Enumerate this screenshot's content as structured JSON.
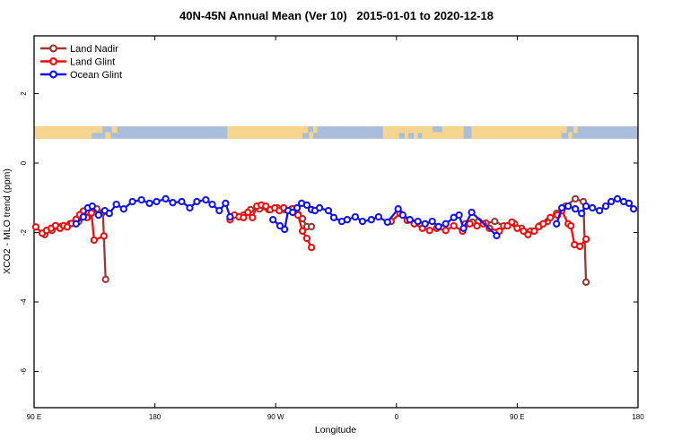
{
  "chart_data": {
    "type": "line",
    "title": "40N-45N Annual Mean (Ver 10)   2015-01-01 to 2020-12-18",
    "xlabel": "Longitude",
    "ylabel": "XCO2 - MLO trend (ppm)",
    "x_axis": {
      "range_deg_east_of_90E": [
        0,
        450
      ],
      "ticks": [
        {
          "deg": 0,
          "label": "90 E"
        },
        {
          "deg": 90,
          "label": "180"
        },
        {
          "deg": 180,
          "label": "90 W"
        },
        {
          "deg": 270,
          "label": "0"
        },
        {
          "deg": 360,
          "label": "90 E"
        },
        {
          "deg": 450,
          "label": "180"
        }
      ]
    },
    "y_axis": {
      "range_ppm": [
        -7.05,
        3.66
      ],
      "ticks": [
        {
          "v": 2,
          "label": "2"
        },
        {
          "v": 0,
          "label": "0"
        },
        {
          "v": -2,
          "label": "-2"
        },
        {
          "v": -4,
          "label": "-4"
        },
        {
          "v": -6,
          "label": "-6"
        }
      ],
      "grid": false
    },
    "legend": {
      "position": "top-left-inside",
      "entries": [
        {
          "name": "Land Nadir",
          "color": "#9E3832"
        },
        {
          "name": "Land Glint",
          "color": "#F80A0A"
        },
        {
          "name": "Ocean Glint",
          "color": "#1212F0"
        }
      ]
    },
    "map_strip": {
      "comment": "land/ocean reference band drawn across plot near +0.9 ppm",
      "ocean_color": "#A9BEDB",
      "land_color": "#F7D58C",
      "band_ppm": [
        0.7,
        1.06
      ],
      "land_segments": [
        {
          "a": 0,
          "b": 43,
          "p": "full"
        },
        {
          "a": 43,
          "b": 51,
          "p": "top"
        },
        {
          "a": 53,
          "b": 57,
          "p": "bottom"
        },
        {
          "a": 58,
          "b": 62,
          "p": "top"
        },
        {
          "a": 144,
          "b": 200,
          "p": "full"
        },
        {
          "a": 200,
          "b": 204,
          "p": "top"
        },
        {
          "a": 205,
          "b": 208,
          "p": "bottom"
        },
        {
          "a": 208,
          "b": 211,
          "p": "top"
        },
        {
          "a": 260,
          "b": 272,
          "p": "full"
        },
        {
          "a": 272,
          "b": 276,
          "p": "top"
        },
        {
          "a": 276,
          "b": 279,
          "p": "full"
        },
        {
          "a": 279,
          "b": 283,
          "p": "top"
        },
        {
          "a": 283,
          "b": 286,
          "p": "full"
        },
        {
          "a": 286,
          "b": 289,
          "p": "top"
        },
        {
          "a": 289,
          "b": 297,
          "p": "full"
        },
        {
          "a": 297,
          "b": 304,
          "p": "bottom"
        },
        {
          "a": 304,
          "b": 320,
          "p": "full"
        },
        {
          "a": 326,
          "b": 393,
          "p": "full"
        },
        {
          "a": 393,
          "b": 397,
          "p": "top"
        },
        {
          "a": 398,
          "b": 401,
          "p": "bottom"
        },
        {
          "a": 402,
          "b": 405,
          "p": "top"
        }
      ]
    },
    "series": [
      {
        "name": "Land Nadir",
        "color": "#9E3832",
        "segments": [
          [
            [
              8,
              -2.06
            ],
            [
              13.3,
              -1.94
            ],
            [
              20,
              -1.83
            ],
            [
              26.7,
              -1.75
            ],
            [
              33.3,
              -1.68
            ],
            [
              40,
              -1.55
            ],
            [
              46.7,
              -1.32
            ],
            [
              51.3,
              -1.42
            ],
            [
              53.3,
              -3.35
            ]
          ],
          [
            [
              156,
              -1.5
            ],
            [
              161.3,
              -1.34
            ],
            [
              168,
              -1.32
            ],
            [
              174.7,
              -1.34
            ],
            [
              181.3,
              -1.29
            ],
            [
              186.7,
              -1.34
            ],
            [
              192,
              -1.32
            ],
            [
              196.7,
              -1.47
            ],
            [
              200,
              -1.6
            ],
            [
              203.3,
              -1.83
            ],
            [
              206.7,
              -1.83
            ]
          ],
          [
            [
              321.3,
              -1.75
            ],
            [
              326.7,
              -1.7
            ],
            [
              331.3,
              -1.68
            ],
            [
              336.7,
              -1.73
            ],
            [
              343.3,
              -1.68
            ],
            [
              350,
              -1.81
            ],
            [
              358,
              -1.75
            ],
            [
              363.3,
              -1.88
            ],
            [
              370,
              -1.96
            ],
            [
              376.7,
              -1.81
            ],
            [
              382.7,
              -1.68
            ],
            [
              389.3,
              -1.45
            ],
            [
              396,
              -1.24
            ],
            [
              403.3,
              -1.03
            ],
            [
              409.3,
              -1.11
            ],
            [
              411.3,
              -3.43
            ]
          ]
        ]
      },
      {
        "name": "Land Glint",
        "color": "#F80A0A",
        "segments": [
          [
            [
              1.3,
              -1.84
            ],
            [
              6,
              -2.02
            ],
            [
              9.3,
              -1.94
            ],
            [
              12.7,
              -1.88
            ],
            [
              16,
              -1.8
            ],
            [
              19.3,
              -1.88
            ],
            [
              22,
              -1.8
            ],
            [
              24.7,
              -1.84
            ],
            [
              28,
              -1.74
            ],
            [
              31.3,
              -1.62
            ],
            [
              34,
              -1.49
            ],
            [
              36.7,
              -1.38
            ],
            [
              39.3,
              -1.57
            ],
            [
              42.7,
              -1.44
            ],
            [
              44.7,
              -2.22
            ],
            [
              52,
              -2.1
            ]
          ],
          [
            [
              146,
              -1.63
            ],
            [
              149.3,
              -1.5
            ],
            [
              152.7,
              -1.55
            ],
            [
              156,
              -1.57
            ],
            [
              159.3,
              -1.42
            ],
            [
              162.7,
              -1.57
            ],
            [
              166,
              -1.24
            ],
            [
              169.3,
              -1.21
            ],
            [
              172.7,
              -1.24
            ],
            [
              176,
              -1.34
            ],
            [
              179.3,
              -1.29
            ],
            [
              182.7,
              -1.37
            ],
            [
              186,
              -1.29
            ],
            [
              192.7,
              -1.32
            ],
            [
              196.7,
              -1.5
            ],
            [
              200,
              -1.96
            ],
            [
              203.3,
              -2.17
            ],
            [
              206.7,
              -2.43
            ]
          ],
          [
            [
              266,
              -1.68
            ],
            [
              272.7,
              -1.45
            ],
            [
              278,
              -1.65
            ],
            [
              283.3,
              -1.75
            ],
            [
              289.3,
              -1.88
            ],
            [
              294.7,
              -1.94
            ],
            [
              300,
              -1.88
            ],
            [
              306.7,
              -1.94
            ],
            [
              312.7,
              -1.81
            ],
            [
              319.3,
              -1.96
            ],
            [
              324.7,
              -1.75
            ],
            [
              330,
              -1.81
            ],
            [
              334.7,
              -1.75
            ],
            [
              339.3,
              -1.88
            ],
            [
              346.7,
              -1.96
            ],
            [
              352.7,
              -1.81
            ],
            [
              356,
              -1.7
            ],
            [
              360,
              -1.88
            ],
            [
              364.7,
              -1.96
            ],
            [
              368,
              -2.06
            ],
            [
              372.7,
              -1.96
            ],
            [
              376,
              -1.83
            ],
            [
              379.3,
              -1.75
            ],
            [
              384.7,
              -1.57
            ],
            [
              390,
              -1.5
            ],
            [
              393.3,
              -1.37
            ],
            [
              398,
              -1.75
            ],
            [
              400,
              -1.81
            ],
            [
              402.7,
              -2.35
            ],
            [
              406.7,
              -2.4
            ],
            [
              411.3,
              -2.19
            ]
          ]
        ]
      },
      {
        "name": "Ocean Glint",
        "color": "#1212F0",
        "segments": [
          [
            [
              31.3,
              -1.75
            ],
            [
              36.7,
              -1.55
            ],
            [
              40,
              -1.29
            ],
            [
              43.3,
              -1.24
            ],
            [
              48,
              -1.5
            ],
            [
              52.7,
              -1.37
            ],
            [
              56,
              -1.45
            ],
            [
              61.3,
              -1.19
            ],
            [
              66.7,
              -1.32
            ],
            [
              73.3,
              -1.11
            ],
            [
              80,
              -1.06
            ],
            [
              86,
              -1.16
            ],
            [
              91.3,
              -1.11
            ],
            [
              98,
              -1.03
            ],
            [
              103.3,
              -1.14
            ],
            [
              110,
              -1.11
            ],
            [
              116,
              -1.29
            ],
            [
              121.3,
              -1.11
            ],
            [
              128,
              -1.06
            ],
            [
              132.7,
              -1.19
            ],
            [
              138,
              -1.37
            ],
            [
              142.7,
              -1.16
            ],
            [
              146,
              -1.55
            ]
          ],
          [
            [
              178,
              -1.63
            ],
            [
              183.3,
              -1.81
            ],
            [
              186.7,
              -1.91
            ],
            [
              189.3,
              -1.37
            ],
            [
              192.7,
              -1.42
            ],
            [
              196,
              -1.29
            ],
            [
              199.3,
              -1.16
            ],
            [
              203.3,
              -1.21
            ],
            [
              206.7,
              -1.34
            ],
            [
              209.3,
              -1.37
            ],
            [
              212.7,
              -1.29
            ],
            [
              219.3,
              -1.37
            ],
            [
              223.3,
              -1.57
            ],
            [
              229.3,
              -1.68
            ],
            [
              233.3,
              -1.63
            ],
            [
              239.3,
              -1.55
            ],
            [
              244.7,
              -1.68
            ],
            [
              251.3,
              -1.63
            ],
            [
              256.7,
              -1.55
            ],
            [
              263.3,
              -1.7
            ],
            [
              271.3,
              -1.32
            ],
            [
              274.7,
              -1.5
            ],
            [
              280,
              -1.63
            ],
            [
              286,
              -1.68
            ],
            [
              291.3,
              -1.75
            ],
            [
              296.7,
              -1.68
            ],
            [
              301.3,
              -1.83
            ],
            [
              306.7,
              -1.75
            ],
            [
              312.7,
              -1.57
            ],
            [
              316.7,
              -1.5
            ],
            [
              320,
              -1.88
            ],
            [
              326,
              -1.42
            ],
            [
              344.7,
              -2.09
            ]
          ],
          [
            [
              389.3,
              -1.75
            ],
            [
              393.3,
              -1.29
            ],
            [
              398,
              -1.24
            ],
            [
              403.3,
              -1.32
            ],
            [
              408,
              -1.45
            ],
            [
              411.3,
              -1.24
            ],
            [
              416,
              -1.29
            ],
            [
              421.3,
              -1.37
            ],
            [
              426,
              -1.24
            ],
            [
              430,
              -1.11
            ],
            [
              434.7,
              -1.03
            ],
            [
              439.3,
              -1.11
            ],
            [
              443.3,
              -1.16
            ],
            [
              446.7,
              -1.32
            ]
          ]
        ]
      }
    ]
  }
}
